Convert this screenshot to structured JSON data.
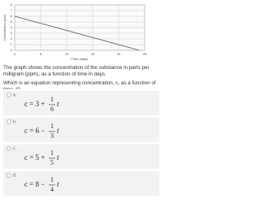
{
  "graph": {
    "x_label": "Time (days)",
    "y_label": "Concentration (ppm)",
    "xlim": [
      0,
      25
    ],
    "xticks": [
      0,
      5,
      10,
      15,
      20,
      25
    ],
    "ylim": [
      0,
      8
    ],
    "yticks": [
      0,
      1,
      2,
      3,
      4,
      5,
      6,
      7,
      8
    ],
    "x": [
      0,
      24
    ],
    "y": [
      6,
      0
    ],
    "color": "#555555"
  },
  "question": {
    "text": "The graph shows the concentration of the substance in parts per milligram (ppm), as a function of time in days.",
    "prompt": "Which is an equation representing concentration, c, as a function of time, t?"
  },
  "options": [
    {
      "letter": "a.",
      "lhs": "c = 3 +",
      "num": "1",
      "den": "6",
      "var": "t"
    },
    {
      "letter": "b.",
      "lhs": "c = 6 −",
      "num": "1",
      "den": "3",
      "var": "t"
    },
    {
      "letter": "c.",
      "lhs": "c = 5 +",
      "num": "1",
      "den": "5",
      "var": "t"
    },
    {
      "letter": "d.",
      "lhs": "c = 8 −",
      "num": "1",
      "den": "4",
      "var": "t"
    }
  ]
}
